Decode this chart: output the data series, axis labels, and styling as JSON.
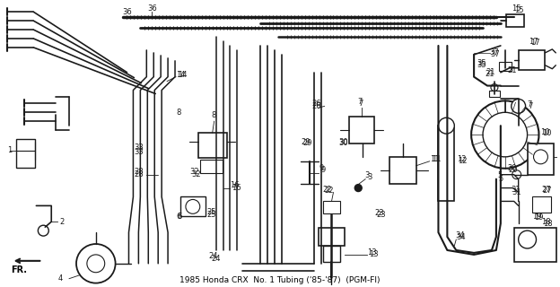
{
  "title": "1985 Honda CRX No. 1 Tubing ('85-’87) (PGM-FI)",
  "bg_color": "#ffffff",
  "fig_width": 6.24,
  "fig_height": 3.2,
  "dpi": 100,
  "line_color": "#1a1a1a",
  "label_color": "#111111"
}
